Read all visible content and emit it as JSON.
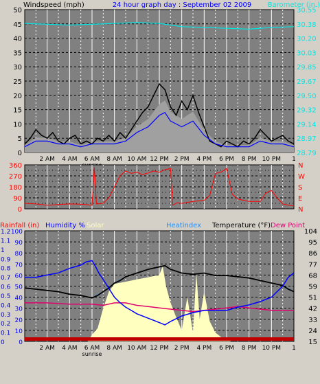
{
  "header": {
    "title": "24 hour graph day : September 02 2009",
    "left_label": "Windspeed (mph)",
    "right_label": "Barometer (in.)"
  },
  "time_labels": [
    "2 AM",
    "4 AM",
    "6 AM",
    "8 AM",
    "10 AM",
    "12 PM",
    "2 PM",
    "4 PM",
    "6 PM",
    "8 PM",
    "10 PM",
    "1"
  ],
  "sunrise_label": "sunrise",
  "colors": {
    "bg": "#d4d0c8",
    "plot": "#808080",
    "wind": "#000000",
    "gust_area": "#a0a0a0",
    "wind_avg": "#0000ff",
    "barometer": "#00e6e6",
    "direction": "#ff0000",
    "humidity": "#0000ff",
    "solar_fill": "#ffffc0",
    "heatindex": "#1e90ff",
    "temperature": "#000000",
    "dewpoint": "#e0006c",
    "rainfall": "#c00000"
  },
  "chart_data": [
    {
      "type": "line",
      "ylabel": "Windspeed (mph)",
      "y2label": "Barometer (in.)",
      "ylim": [
        0,
        50
      ],
      "y_ticks": [
        0,
        5,
        8,
        11,
        14,
        17,
        20,
        23,
        26,
        29,
        32,
        35,
        38,
        41,
        44,
        47,
        50
      ],
      "y_tick_labels": [
        "0",
        "5",
        "10",
        "15",
        "20",
        "25",
        "30",
        "35",
        "40",
        "45",
        "50"
      ],
      "y_tick_values": [
        0,
        5,
        10,
        15,
        20,
        25,
        30,
        35,
        40,
        45,
        50
      ],
      "y2_tick_labels": [
        "28.79",
        "28.97",
        "29.14",
        "29.32",
        "29.50",
        "29.67",
        "29.85",
        "30.03",
        "30.20",
        "30.38",
        "30.55"
      ],
      "y2lim": [
        28.79,
        30.55
      ],
      "x_hours": [
        0,
        24
      ],
      "series": [
        {
          "key": "windspeed",
          "x": [
            0,
            0.5,
            1,
            1.5,
            2,
            2.5,
            3,
            3.5,
            4,
            4.5,
            5,
            5.5,
            6,
            6.5,
            7,
            7.5,
            8,
            8.5,
            9,
            9.5,
            10,
            10.5,
            11,
            11.5,
            12,
            12.5,
            13,
            13.5,
            14,
            14.5,
            15,
            15.5,
            16,
            16.5,
            17,
            17.5,
            18,
            18.5,
            19,
            19.5,
            20,
            20.5,
            21,
            21.5,
            22,
            22.5,
            23,
            23.5,
            24
          ],
          "y": [
            3,
            5,
            8,
            6,
            5,
            7,
            4,
            3,
            5,
            6,
            3,
            4,
            3,
            5,
            4,
            6,
            4,
            7,
            5,
            8,
            11,
            14,
            16,
            20,
            24,
            22,
            16,
            13,
            18,
            15,
            20,
            14,
            9,
            4,
            3,
            2,
            4,
            3,
            2,
            4,
            3,
            5,
            8,
            6,
            4,
            5,
            6,
            4,
            3
          ]
        },
        {
          "key": "wind_avg",
          "x": [
            0,
            1,
            2,
            3,
            4,
            5,
            6,
            7,
            8,
            9,
            10,
            11,
            12,
            12.5,
            13,
            14,
            15,
            16,
            17,
            18,
            19,
            20,
            21,
            22,
            23,
            24
          ],
          "y": [
            2,
            4,
            4,
            3,
            3,
            2,
            3,
            3,
            3,
            4,
            7,
            9,
            13,
            14,
            11,
            9,
            11,
            6,
            3,
            2,
            2,
            2,
            4,
            3,
            3,
            2
          ]
        },
        {
          "key": "barometer",
          "x": [
            0,
            2,
            4,
            6,
            8,
            10,
            12,
            14,
            16,
            18,
            20,
            22,
            24
          ],
          "y": [
            30.38,
            30.37,
            30.36,
            30.37,
            30.38,
            30.39,
            30.38,
            30.34,
            30.33,
            30.32,
            30.31,
            30.33,
            30.34
          ]
        }
      ]
    },
    {
      "type": "line",
      "ylabel": "Wind direction",
      "ylim": [
        0,
        360
      ],
      "y_tick_labels": [
        "0",
        "90",
        "180",
        "270",
        "360"
      ],
      "y_tick_values": [
        0,
        90,
        180,
        270,
        360
      ],
      "y_tick_minor": [
        45,
        135,
        225,
        315
      ],
      "compass_labels": [
        "N",
        "W",
        "S",
        "E",
        "N"
      ],
      "series": [
        {
          "key": "direction",
          "x": [
            0,
            1,
            2,
            3,
            4,
            5,
            6,
            6.2,
            6.4,
            7,
            7.5,
            8,
            8.5,
            9,
            9.5,
            10,
            10.5,
            11,
            11.5,
            12,
            12.5,
            13,
            13.2,
            13.6,
            14,
            15,
            16,
            16.5,
            17,
            17.5,
            18,
            18.5,
            19,
            20,
            21,
            21.5,
            22,
            22.5,
            23,
            23.5,
            24
          ],
          "y": [
            45,
            40,
            30,
            35,
            40,
            38,
            30,
            340,
            40,
            45,
            90,
            180,
            270,
            310,
            290,
            300,
            280,
            295,
            310,
            300,
            320,
            330,
            30,
            50,
            45,
            60,
            70,
            110,
            290,
            300,
            330,
            120,
            80,
            60,
            60,
            130,
            150,
            90,
            40,
            30,
            25
          ]
        }
      ]
    },
    {
      "type": "line",
      "labels": [
        "Rainfall (in)",
        "Humidity %",
        "Solar",
        "Heatindex",
        "Temperature (°F)",
        "Dew Point"
      ],
      "y_rain_labels": [
        "0",
        "0.1",
        "0.2",
        "0.3",
        "0.4",
        "0.5",
        "0.6",
        "0.7",
        "0.8",
        "0.9",
        "1",
        "1.1",
        "1.2"
      ],
      "y_hum_labels": [
        "0",
        "10",
        "20",
        "30",
        "40",
        "50",
        "60",
        "70",
        "80",
        "90",
        "100"
      ],
      "y_temp_labels": [
        "15",
        "24",
        "33",
        "42",
        "51",
        "59",
        "68",
        "77",
        "86",
        "95",
        "104"
      ],
      "ylim_humidity": [
        0,
        100
      ],
      "ylim_temp": [
        15,
        104
      ],
      "series": [
        {
          "key": "humidity",
          "x": [
            0,
            1,
            2,
            3,
            4,
            5,
            5.5,
            6,
            6.3,
            6.6,
            7,
            7.5,
            8,
            8.5,
            9,
            9.5,
            10,
            11,
            12,
            12.5,
            13,
            14,
            15,
            16,
            17,
            18,
            19,
            20,
            21,
            22,
            23,
            23.5,
            24
          ],
          "y": [
            58,
            58,
            60,
            62,
            66,
            69,
            72,
            73,
            68,
            62,
            56,
            48,
            40,
            35,
            31,
            28,
            25,
            21,
            17,
            15,
            18,
            23,
            26,
            28,
            28,
            28,
            31,
            33,
            36,
            40,
            50,
            58,
            62
          ]
        },
        {
          "key": "temperature",
          "x": [
            0,
            1,
            2,
            3,
            4,
            5,
            5.5,
            6,
            6.5,
            7,
            7.5,
            8,
            8.5,
            9,
            10,
            11,
            12,
            12.5,
            13,
            14,
            15,
            16,
            17,
            18,
            19,
            20,
            21,
            22,
            23,
            23.5,
            24
          ],
          "y": [
            58,
            57,
            56,
            55,
            53,
            52,
            51,
            50,
            52,
            55,
            58,
            62,
            64,
            67,
            70,
            73,
            75,
            76,
            73,
            70,
            69,
            70,
            68,
            68,
            67,
            66,
            64,
            62,
            60,
            57,
            55
          ]
        },
        {
          "key": "dewpoint",
          "x": [
            0,
            2,
            4,
            6,
            7,
            8,
            9,
            10,
            11,
            12,
            13,
            14,
            15,
            16,
            17,
            18,
            19,
            20,
            21,
            22,
            23,
            24
          ],
          "y": [
            46,
            46,
            45,
            45,
            44,
            46,
            46,
            44,
            43,
            42,
            41,
            40,
            39,
            40,
            41,
            42,
            43,
            42,
            41,
            40,
            40,
            40
          ]
        },
        {
          "key": "heatindex",
          "x": [
            0,
            1,
            2,
            3,
            4,
            5,
            6,
            7,
            8,
            9,
            10,
            11,
            12,
            12.5,
            13,
            14,
            15,
            16,
            17,
            18,
            19,
            20,
            21,
            22,
            23,
            24
          ],
          "y": [
            58,
            57,
            56,
            55,
            53,
            52,
            50,
            55,
            62,
            67,
            70,
            73,
            75,
            76,
            73,
            70,
            69,
            70,
            68,
            68,
            67,
            66,
            64,
            62,
            60,
            55
          ]
        },
        {
          "key": "solar",
          "x": [
            5.6,
            6,
            6.5,
            7,
            7.5,
            8,
            9,
            10,
            11,
            12,
            12.3,
            12.6,
            13,
            13.5,
            14,
            14.5,
            15,
            15.3,
            15.6,
            16,
            16.5,
            17,
            17.5,
            18,
            18.4
          ],
          "y": [
            0,
            6,
            12,
            30,
            45,
            52,
            54,
            56,
            58,
            60,
            68,
            50,
            35,
            22,
            10,
            40,
            8,
            62,
            20,
            45,
            18,
            8,
            4,
            2,
            0
          ]
        }
      ]
    }
  ]
}
